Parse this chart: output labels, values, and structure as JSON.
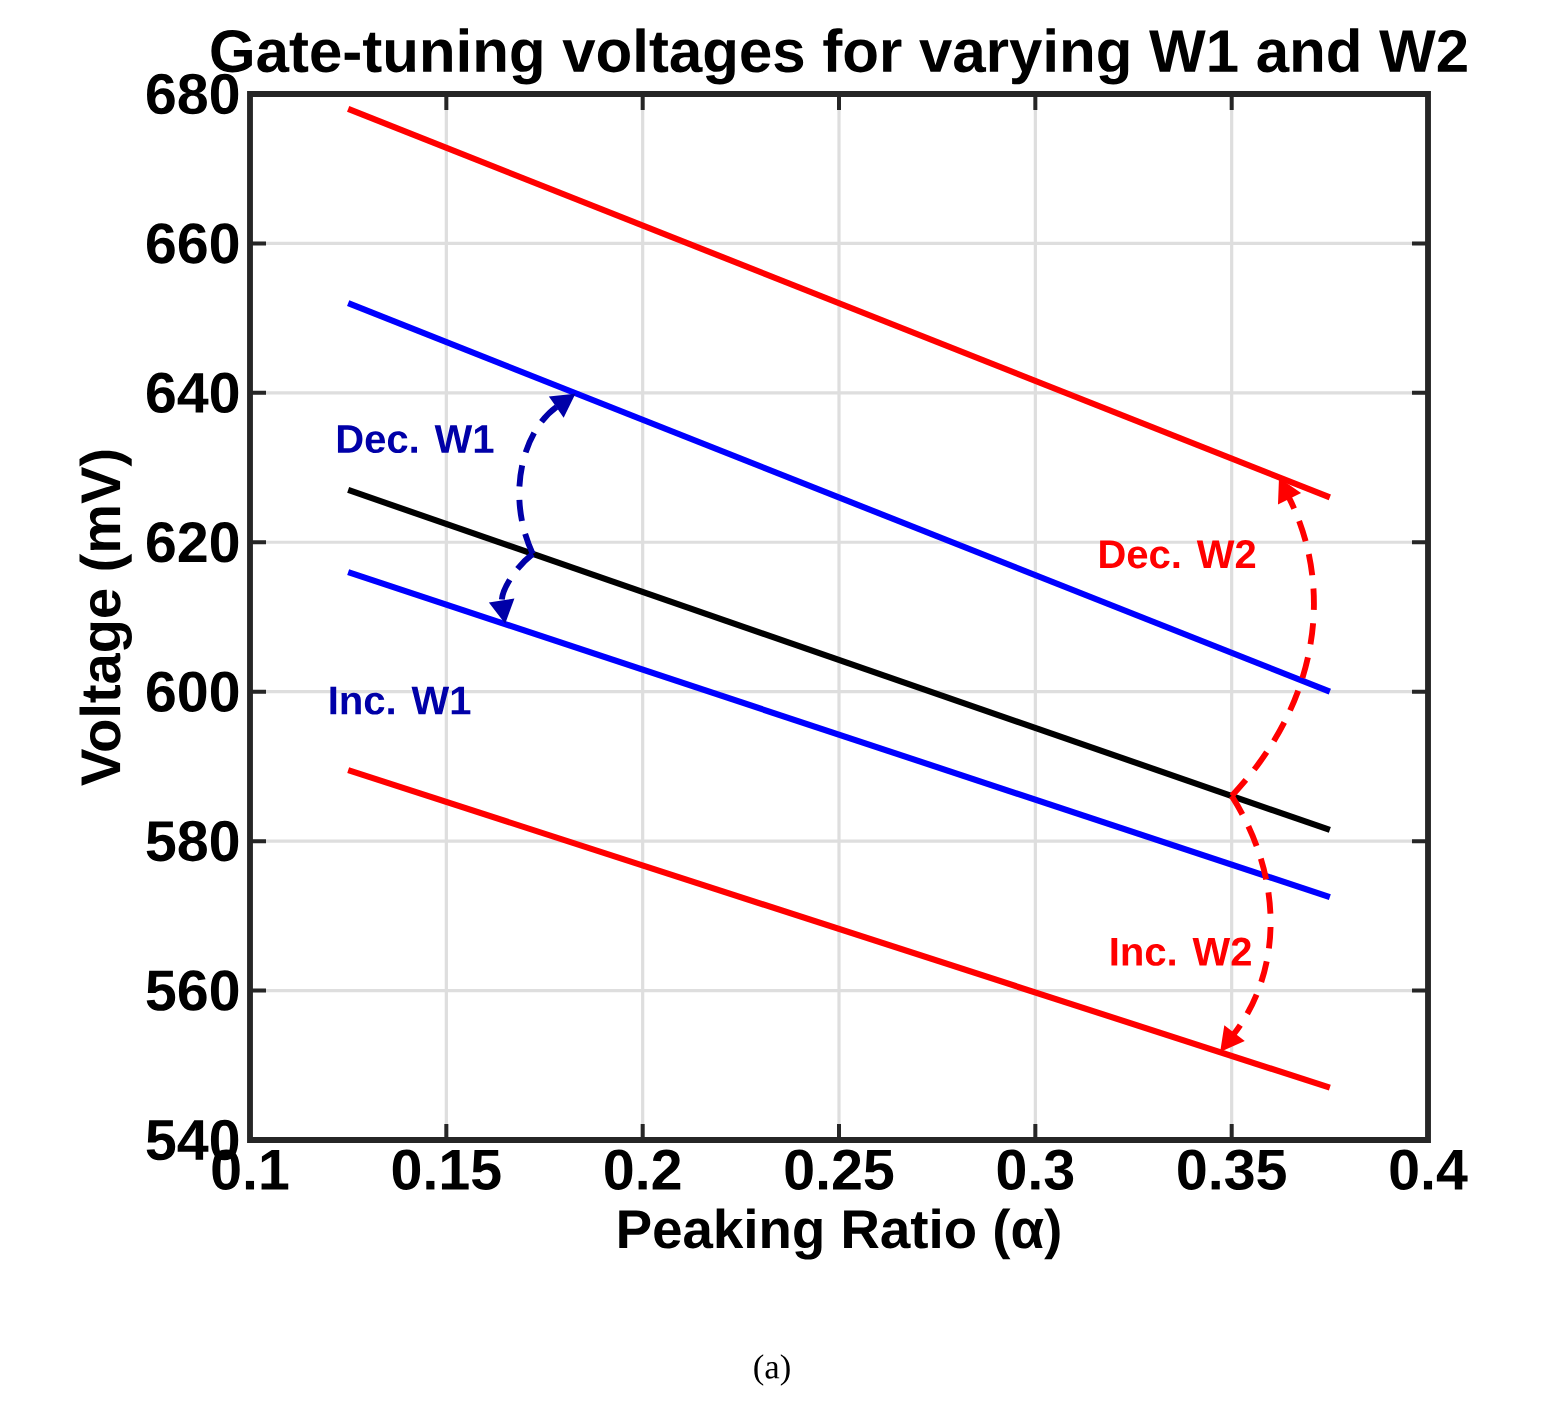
{
  "chart_data": {
    "type": "line",
    "title": "Gate-tuning voltages for varying W1 and W2",
    "xlabel": "Peaking Ratio (α)",
    "ylabel": "Voltage (mV)",
    "series": [
      {
        "color": "#ff0000",
        "values": [
          678,
          626
        ]
      },
      {
        "color": "#0000ff",
        "values": [
          652,
          600
        ]
      },
      {
        "color": "#000000",
        "values": [
          627,
          581.5
        ]
      },
      {
        "color": "#0000ff",
        "values": [
          616,
          572.5
        ]
      },
      {
        "color": "#ff0000",
        "values": [
          589.5,
          547
        ]
      }
    ],
    "x": [
      0.125,
      0.375
    ],
    "xlim": [
      0.1,
      0.4
    ],
    "ylim": [
      540,
      680
    ],
    "xticks": [
      0.1,
      0.15,
      0.2,
      0.25,
      0.3,
      0.35,
      0.4
    ],
    "yticks": [
      540,
      560,
      580,
      600,
      620,
      640,
      660,
      680
    ],
    "grid": true,
    "marker": "none",
    "line_style": "solid",
    "annotations": [
      "Dec. W1",
      "Inc. W1",
      "Dec. W2",
      "Inc. W2",
      "(a)"
    ]
  }
}
